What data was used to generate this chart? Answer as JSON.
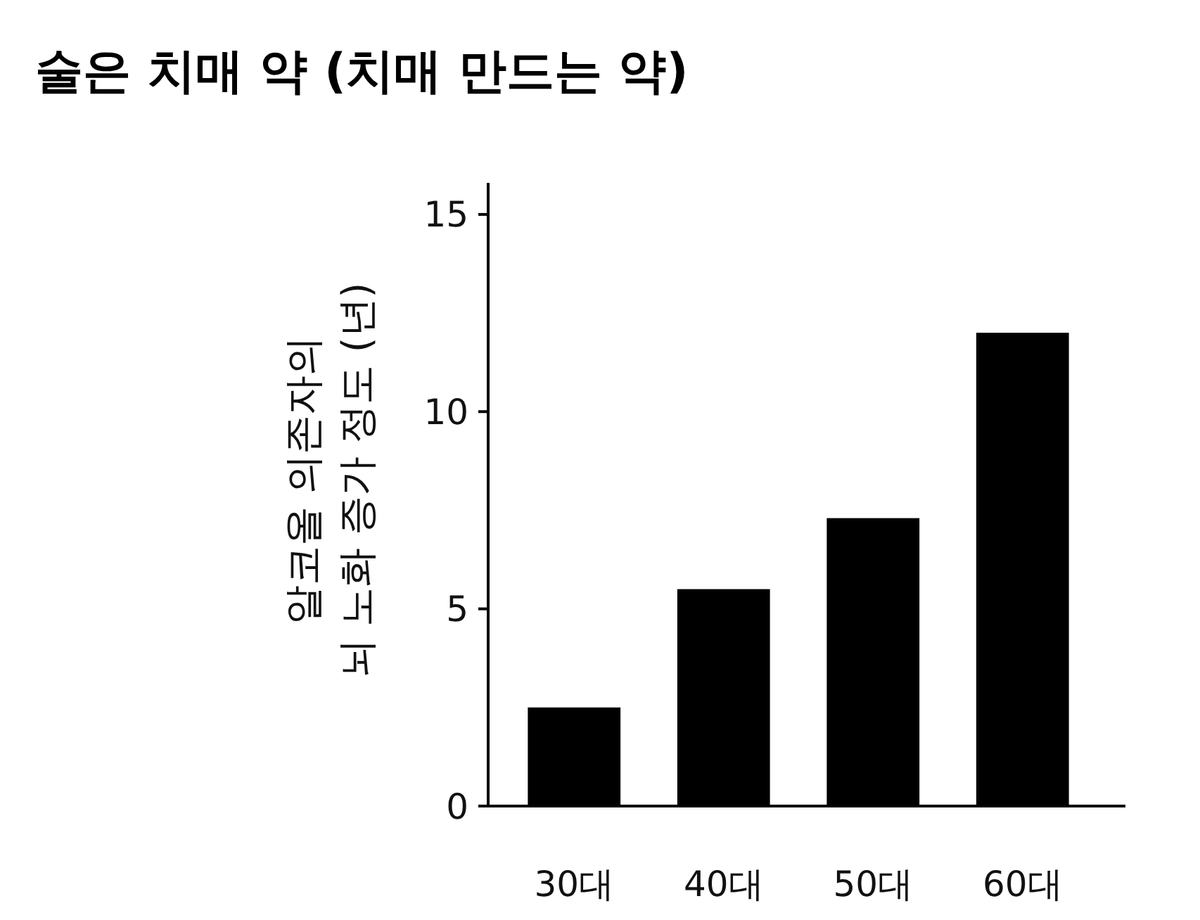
{
  "chart_data": {
    "type": "bar",
    "title": "술은 치매 약 (치매 만드는 약)",
    "ylabel": "알코올 의존자의\n뇌 노화 증가 정도 (년)",
    "categories": [
      "30대",
      "40대",
      "50대",
      "60대"
    ],
    "values": [
      2.5,
      5.5,
      7.3,
      12
    ],
    "color": "#000000",
    "ylim": [
      0,
      15.8
    ],
    "yticks": [
      0,
      5,
      10,
      15
    ],
    "grid": false
  }
}
